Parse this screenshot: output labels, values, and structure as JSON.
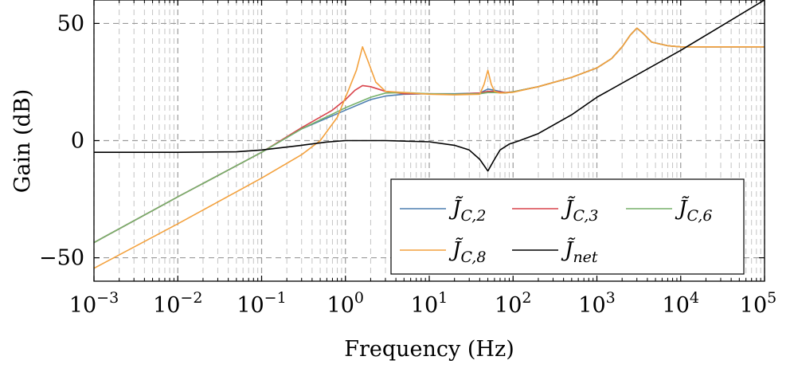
{
  "chart_data": {
    "type": "line",
    "title": "",
    "xlabel": "Frequency (Hz)",
    "ylabel": "Gain (dB)",
    "x_scale": "log",
    "xlim": [
      0.001,
      100000
    ],
    "ylim": [
      -60,
      60
    ],
    "x_tick_labels": [
      {
        "value": 0.001,
        "base": "10",
        "exp": "−3"
      },
      {
        "value": 0.01,
        "base": "10",
        "exp": "−2"
      },
      {
        "value": 0.1,
        "base": "10",
        "exp": "−1"
      },
      {
        "value": 1,
        "base": "10",
        "exp": "0"
      },
      {
        "value": 10,
        "base": "10",
        "exp": "1"
      },
      {
        "value": 100,
        "base": "10",
        "exp": "2"
      },
      {
        "value": 1000,
        "base": "10",
        "exp": "3"
      },
      {
        "value": 10000,
        "base": "10",
        "exp": "4"
      },
      {
        "value": 100000,
        "base": "10",
        "exp": "5"
      }
    ],
    "y_tick_labels": [
      {
        "value": 50,
        "label": "50"
      },
      {
        "value": 0,
        "label": "0"
      },
      {
        "value": -50,
        "label": "−50"
      }
    ],
    "grid": true,
    "legend_position": "lower-right",
    "series": [
      {
        "name": "J̃C,2",
        "name_base": "J̃",
        "name_sub": "C,2",
        "color": "#4d7fb1",
        "points": [
          [
            0.001,
            -43.5
          ],
          [
            0.01,
            -24
          ],
          [
            0.1,
            -5
          ],
          [
            0.3,
            5
          ],
          [
            1,
            13
          ],
          [
            2,
            17.5
          ],
          [
            3,
            19
          ],
          [
            5,
            19.8
          ],
          [
            10,
            20
          ],
          [
            20,
            20
          ],
          [
            40,
            20.3
          ],
          [
            50,
            22
          ],
          [
            60,
            21.5
          ],
          [
            80,
            20.5
          ],
          [
            100,
            20.8
          ],
          [
            200,
            23
          ],
          [
            500,
            27
          ],
          [
            1000,
            31
          ],
          [
            1500,
            35
          ],
          [
            2000,
            40
          ],
          [
            2500,
            45
          ],
          [
            3000,
            48
          ],
          [
            3500,
            46
          ],
          [
            4500,
            42
          ],
          [
            7000,
            40.5
          ],
          [
            10000,
            40
          ],
          [
            100000,
            40
          ]
        ]
      },
      {
        "name": "J̃C,3",
        "name_base": "J̃",
        "name_sub": "C,3",
        "color": "#d9434b",
        "points": [
          [
            0.001,
            -43.5
          ],
          [
            0.01,
            -24
          ],
          [
            0.1,
            -5
          ],
          [
            0.3,
            5.5
          ],
          [
            0.7,
            13
          ],
          [
            1,
            17.5
          ],
          [
            1.3,
            21.5
          ],
          [
            1.6,
            23.5
          ],
          [
            2,
            23
          ],
          [
            3,
            21
          ],
          [
            5,
            20
          ],
          [
            10,
            20
          ],
          [
            20,
            19.8
          ],
          [
            40,
            20.3
          ],
          [
            50,
            21
          ],
          [
            60,
            21
          ],
          [
            80,
            20.5
          ],
          [
            100,
            20.8
          ],
          [
            200,
            23
          ],
          [
            500,
            27
          ],
          [
            1000,
            31
          ],
          [
            1500,
            35
          ],
          [
            2000,
            40
          ],
          [
            2500,
            45
          ],
          [
            3000,
            48
          ],
          [
            3500,
            46
          ],
          [
            4500,
            42
          ],
          [
            7000,
            40.5
          ],
          [
            10000,
            40
          ],
          [
            100000,
            40
          ]
        ]
      },
      {
        "name": "J̃C,6",
        "name_base": "J̃",
        "name_sub": "C,6",
        "color": "#77b16a",
        "points": [
          [
            0.001,
            -43.5
          ],
          [
            0.01,
            -24
          ],
          [
            0.1,
            -5
          ],
          [
            0.3,
            5
          ],
          [
            1,
            14
          ],
          [
            2,
            18.5
          ],
          [
            3,
            20.3
          ],
          [
            5,
            20.5
          ],
          [
            10,
            20
          ],
          [
            20,
            19.8
          ],
          [
            40,
            20
          ],
          [
            50,
            20.5
          ],
          [
            60,
            20.5
          ],
          [
            80,
            20.3
          ],
          [
            100,
            20.8
          ],
          [
            200,
            23
          ],
          [
            500,
            27
          ],
          [
            1000,
            31
          ],
          [
            1500,
            35
          ],
          [
            2000,
            40
          ],
          [
            2500,
            45
          ],
          [
            3000,
            48
          ],
          [
            3500,
            46
          ],
          [
            4500,
            42
          ],
          [
            7000,
            40.5
          ],
          [
            10000,
            40
          ],
          [
            100000,
            40
          ]
        ]
      },
      {
        "name": "J̃C,8",
        "name_base": "J̃",
        "name_sub": "C,8",
        "color": "#f3a13d",
        "points": [
          [
            0.001,
            -54.5
          ],
          [
            0.01,
            -35.5
          ],
          [
            0.1,
            -16
          ],
          [
            0.3,
            -6
          ],
          [
            0.5,
            0
          ],
          [
            0.8,
            10
          ],
          [
            1.1,
            22
          ],
          [
            1.35,
            30
          ],
          [
            1.6,
            40
          ],
          [
            1.9,
            33
          ],
          [
            2.3,
            25
          ],
          [
            3,
            21
          ],
          [
            5,
            20.5
          ],
          [
            10,
            19.8
          ],
          [
            20,
            19.5
          ],
          [
            40,
            19.8
          ],
          [
            45,
            24
          ],
          [
            50,
            30
          ],
          [
            55,
            24
          ],
          [
            60,
            21
          ],
          [
            70,
            20.3
          ],
          [
            100,
            20.6
          ],
          [
            200,
            23
          ],
          [
            500,
            27
          ],
          [
            1000,
            31
          ],
          [
            1500,
            35
          ],
          [
            2000,
            40
          ],
          [
            2500,
            45
          ],
          [
            3000,
            48
          ],
          [
            3500,
            46
          ],
          [
            4500,
            42
          ],
          [
            7000,
            40.5
          ],
          [
            10000,
            40
          ],
          [
            100000,
            40
          ]
        ]
      },
      {
        "name": "J̃net",
        "name_base": "J̃",
        "name_sub": "net",
        "color": "#000000",
        "points": [
          [
            0.001,
            -5
          ],
          [
            0.01,
            -5
          ],
          [
            0.05,
            -4.8
          ],
          [
            0.1,
            -4
          ],
          [
            0.3,
            -2
          ],
          [
            0.6,
            -0.6
          ],
          [
            1,
            0
          ],
          [
            3,
            0
          ],
          [
            10,
            -0.5
          ],
          [
            20,
            -2
          ],
          [
            30,
            -4
          ],
          [
            40,
            -8
          ],
          [
            50,
            -13
          ],
          [
            60,
            -8
          ],
          [
            70,
            -4
          ],
          [
            90,
            -1.5
          ],
          [
            120,
            0
          ],
          [
            200,
            3
          ],
          [
            500,
            11
          ],
          [
            1000,
            18.5
          ],
          [
            10000,
            38.5
          ],
          [
            100000,
            60
          ]
        ]
      }
    ]
  }
}
